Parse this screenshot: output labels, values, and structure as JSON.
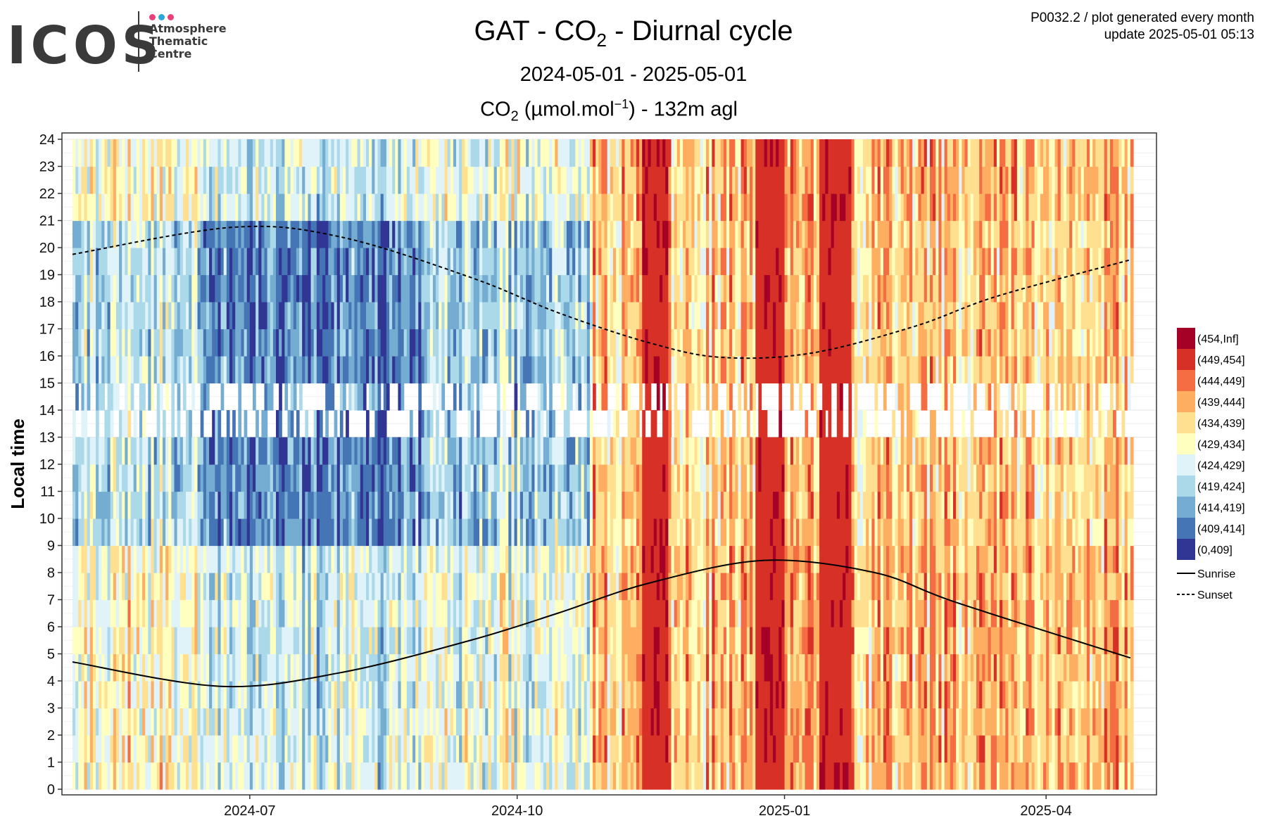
{
  "header": {
    "logo_text": "ICOS",
    "logo_sub": [
      "Atmosphere",
      "Thematic",
      "Centre"
    ],
    "logo_dot_colors": [
      "#e8417a",
      "#2ba6de",
      "#e8417a"
    ],
    "title_pre": "GAT - CO",
    "title_sub": "2",
    "title_post": " - Diurnal cycle",
    "subtitle": "2024-05-01 - 2025-05-01",
    "unit_pre": "CO",
    "unit_sub": "2",
    "unit_mid": " (µmol.mol",
    "unit_sup": "−1",
    "unit_post": ") - 132m agl",
    "note_line1": "P0032.2 / plot generated every month",
    "note_line2": "update  2025-05-01 05:13"
  },
  "chart_data": {
    "type": "heatmap",
    "title": "GAT - CO2 - Diurnal cycle",
    "ylabel": "Local time",
    "xlabel": "",
    "x_range": [
      "2024-05-01",
      "2025-05-01"
    ],
    "ylim": [
      0,
      24
    ],
    "y_ticks": [
      0,
      1,
      2,
      3,
      4,
      5,
      6,
      7,
      8,
      9,
      10,
      11,
      12,
      13,
      14,
      15,
      16,
      17,
      18,
      19,
      20,
      21,
      22,
      23,
      24
    ],
    "x_ticks": [
      {
        "date": "2024-07-01",
        "label": "2024-07"
      },
      {
        "date": "2024-10-01",
        "label": "2024-10"
      },
      {
        "date": "2025-01-01",
        "label": "2025-01"
      },
      {
        "date": "2025-04-01",
        "label": "2025-04"
      }
    ],
    "grid": true,
    "legend_position": "right",
    "legend_classes": [
      {
        "label": "(454,Inf]",
        "color": "#a50026"
      },
      {
        "label": "(449,454]",
        "color": "#d73027"
      },
      {
        "label": "(444,449]",
        "color": "#f46d43"
      },
      {
        "label": "(439,444]",
        "color": "#fdae61"
      },
      {
        "label": "(434,439]",
        "color": "#fee090"
      },
      {
        "label": "(429,434]",
        "color": "#ffffbf"
      },
      {
        "label": "(424,429]",
        "color": "#e0f3f8"
      },
      {
        "label": "(419,424]",
        "color": "#abd9e9"
      },
      {
        "label": "(414,419]",
        "color": "#74add1"
      },
      {
        "label": "(409,414]",
        "color": "#4575b4"
      },
      {
        "label": "(0,409]",
        "color": "#313695"
      }
    ],
    "lines": [
      {
        "name": "Sunrise",
        "style": "solid",
        "points": [
          [
            "2024-05-01",
            4.7
          ],
          [
            "2024-06-21",
            3.8
          ],
          [
            "2024-08-01",
            4.3
          ],
          [
            "2024-09-15",
            5.5
          ],
          [
            "2024-10-15",
            6.5
          ],
          [
            "2024-11-15",
            7.6
          ],
          [
            "2024-12-25",
            8.45
          ],
          [
            "2025-02-01",
            8.0
          ],
          [
            "2025-03-01",
            6.9
          ],
          [
            "2025-04-30",
            4.85
          ]
        ]
      },
      {
        "name": "Sunset",
        "style": "dashed",
        "points": [
          [
            "2024-05-01",
            19.75
          ],
          [
            "2024-06-25",
            20.75
          ],
          [
            "2024-08-01",
            20.4
          ],
          [
            "2024-09-15",
            18.9
          ],
          [
            "2024-10-15",
            17.6
          ],
          [
            "2024-11-15",
            16.5
          ],
          [
            "2024-12-10",
            15.95
          ],
          [
            "2025-01-10",
            16.1
          ],
          [
            "2025-02-15",
            17.1
          ],
          [
            "2025-03-15",
            18.2
          ],
          [
            "2025-04-30",
            19.55
          ]
        ]
      }
    ],
    "heatmap_profile": [
      {
        "from": "2024-05-01",
        "to": "2024-06-15",
        "class_base": 6.5,
        "night_shift": 1.5
      },
      {
        "from": "2024-06-15",
        "to": "2024-09-01",
        "class_base": 8.6,
        "night_shift": 2.5
      },
      {
        "from": "2024-09-01",
        "to": "2024-10-27",
        "class_base": 7.0,
        "night_shift": 1.5
      },
      {
        "from": "2024-10-27",
        "to": "2025-05-01",
        "class_base": 3.8,
        "night_shift": 0.4
      }
    ],
    "high_bands": [
      {
        "from": "2024-11-13",
        "to": "2024-11-22"
      },
      {
        "from": "2024-12-22",
        "to": "2025-01-01"
      },
      {
        "from": "2025-01-13",
        "to": "2025-01-24"
      }
    ],
    "missing_hours": [
      13,
      14
    ]
  }
}
